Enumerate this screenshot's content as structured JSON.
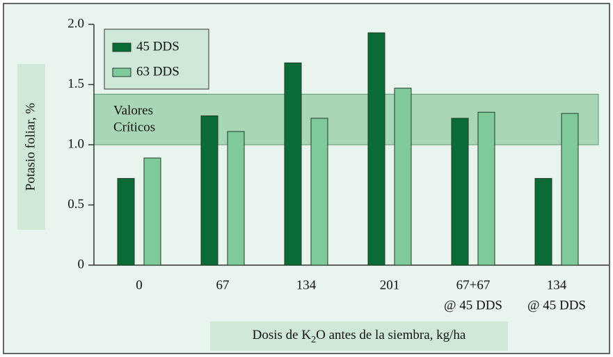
{
  "chart_data": {
    "type": "bar",
    "y_label": "Potasio foliar, %",
    "x_label": [
      "Dosis de K",
      "2",
      "O antes de la siembra, kg/ha"
    ],
    "categories": [
      "0",
      "67",
      "134",
      "201",
      "67+67",
      "134"
    ],
    "category_sublabels": [
      null,
      null,
      null,
      null,
      "@ 45 DDS",
      "@ 45 DDS"
    ],
    "series": [
      {
        "name": "45 DDS",
        "color": "#0b6b36",
        "values": [
          0.72,
          1.24,
          1.68,
          1.93,
          1.22,
          0.72
        ]
      },
      {
        "name": "63 DDS",
        "color": "#80c99b",
        "values": [
          0.89,
          1.11,
          1.22,
          1.47,
          1.27,
          1.26
        ]
      }
    ],
    "critical_band": {
      "label": [
        "Valores",
        "Críticos"
      ],
      "range": [
        1.0,
        1.42
      ],
      "color": "#a9d6b7"
    },
    "ylim": [
      0,
      2
    ],
    "yticks": [
      0,
      0.5,
      {
        "value": 1,
        "label": "1.0"
      },
      1.5,
      {
        "value": 2,
        "label": "2.0"
      }
    ],
    "legend": "upper left"
  }
}
